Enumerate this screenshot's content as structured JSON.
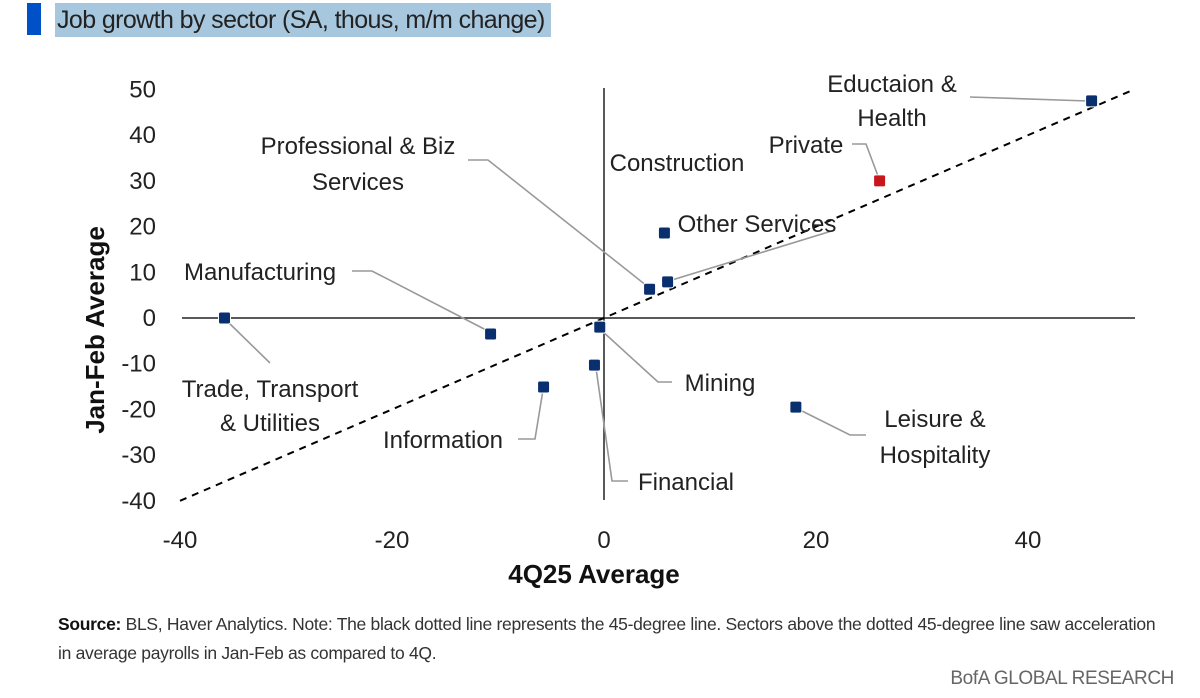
{
  "title": "Job growth by sector (SA, thous, m/m change)",
  "footnote": {
    "source_label": "Source:",
    "text": "BLS, Haver Analytics. Note: The black dotted line represents the 45-degree line. Sectors above the dotted 45-degree line saw acceleration in average payrolls in Jan-Feb as compared to 4Q."
  },
  "brand": "BofA GLOBAL RESEARCH",
  "chart_data": {
    "type": "scatter",
    "xlabel": "4Q25 Average",
    "ylabel": "Jan-Feb Average",
    "xlim": [
      -40,
      50
    ],
    "ylim": [
      -40,
      50
    ],
    "xticks": [
      -40,
      -20,
      0,
      20,
      40
    ],
    "yticks": [
      50,
      40,
      30,
      20,
      10,
      0,
      -10,
      -20,
      -30,
      -40
    ],
    "grid": false,
    "reference_line": {
      "description": "45-degree line",
      "style": "dashed",
      "color": "#000000",
      "from": [
        -40,
        -40
      ],
      "to": [
        50,
        50
      ]
    },
    "colors": {
      "sector": "#0a2f6e",
      "private": "#c8161d"
    },
    "points": [
      {
        "label": "Eductaion & Health",
        "x": 46.0,
        "y": 47.5,
        "highlight": false
      },
      {
        "label": "Private",
        "x": 26.0,
        "y": 30.0,
        "highlight": true
      },
      {
        "label": "Construction",
        "x": 5.7,
        "y": 18.6,
        "highlight": false
      },
      {
        "label": "Other Services",
        "x": 6.0,
        "y": 7.9,
        "highlight": false
      },
      {
        "label": "Professional & Biz Services",
        "x": 4.3,
        "y": 6.3,
        "highlight": false
      },
      {
        "label": "Manufacturing",
        "x": -10.7,
        "y": -3.5,
        "highlight": false
      },
      {
        "label": "Trade, Transport & Utilities",
        "x": -35.8,
        "y": 0.0,
        "highlight": false
      },
      {
        "label": "Mining",
        "x": -0.4,
        "y": -2.0,
        "highlight": false
      },
      {
        "label": "Financial",
        "x": -0.9,
        "y": -10.3,
        "highlight": false
      },
      {
        "label": "Information",
        "x": -5.7,
        "y": -15.1,
        "highlight": false
      },
      {
        "label": "Leisure & Hospitality",
        "x": 18.1,
        "y": -19.5,
        "highlight": false
      }
    ]
  }
}
